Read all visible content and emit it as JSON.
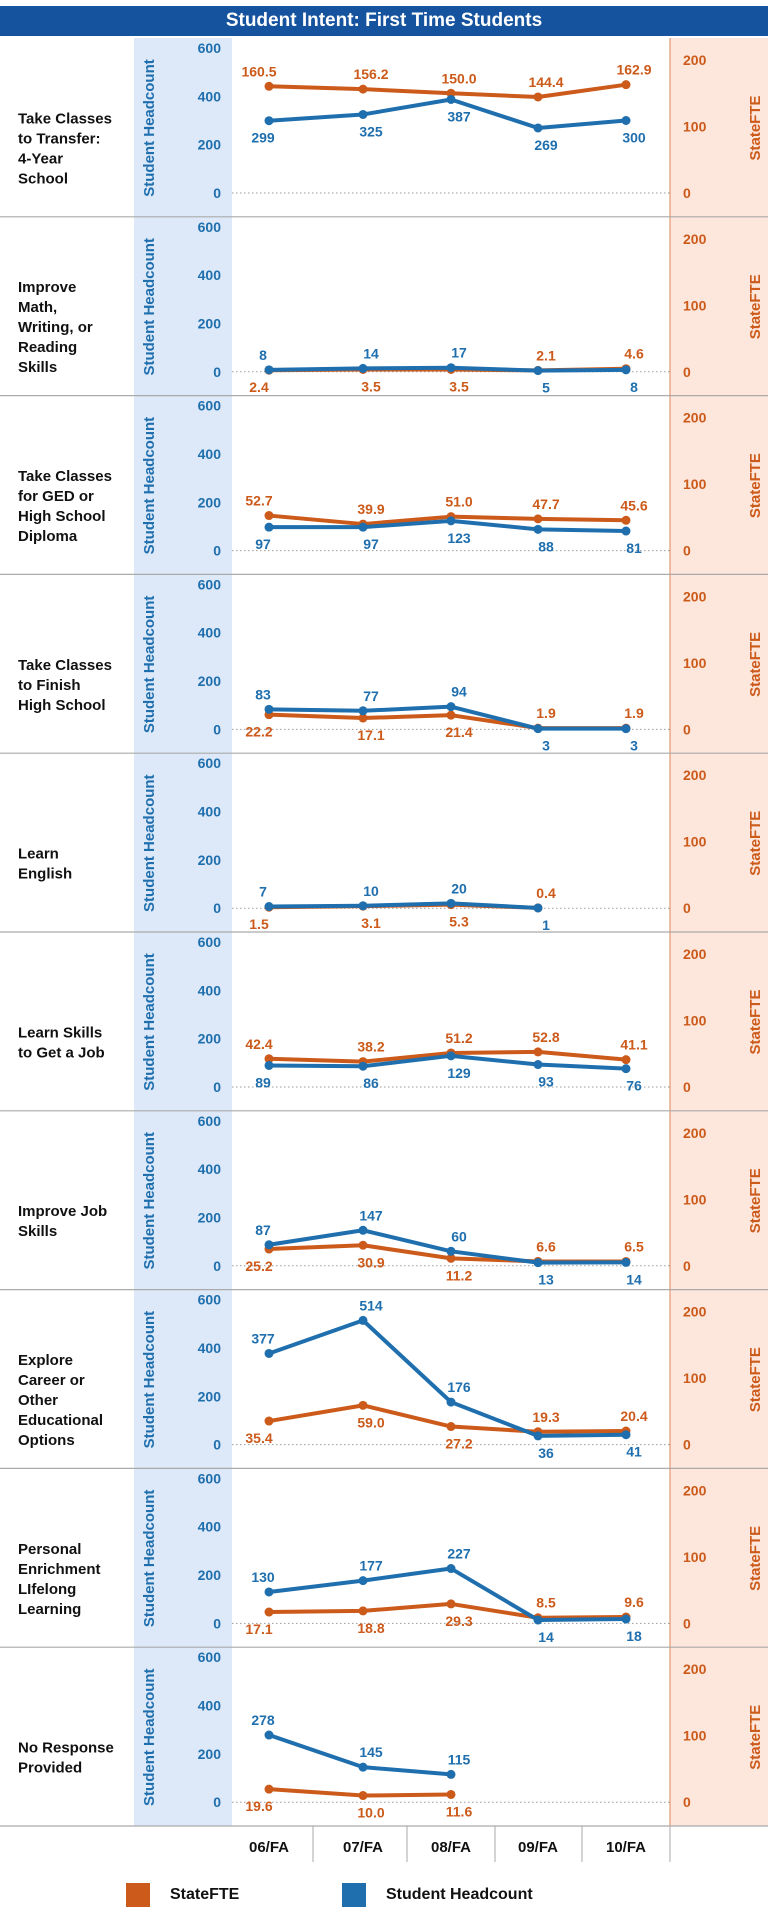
{
  "chart_data": {
    "type": "line",
    "title": "Student Intent: First Time Students",
    "categories": [
      "06/FA",
      "07/FA",
      "08/FA",
      "09/FA",
      "10/FA"
    ],
    "left_axis": {
      "label": "Student Headcount",
      "ticks": [
        0,
        200,
        400,
        600
      ],
      "ylim": [
        0,
        620
      ]
    },
    "right_axis": {
      "label": "StateFTE",
      "ticks": [
        0,
        100,
        200
      ],
      "ylim": [
        0,
        220
      ]
    },
    "grid": false,
    "legend_position": "bottom",
    "colors": {
      "statefte": "#cc5a1a",
      "headcount": "#1f6fae",
      "title_bg": "#15539e",
      "left_band": "#dde9f8",
      "right_band": "#fde6db"
    },
    "panels": [
      {
        "label": "Take Classes to Transfer: 4-Year School",
        "headcount": [
          299,
          325,
          387,
          269,
          300
        ],
        "statefte": [
          160.5,
          156.2,
          150.0,
          144.4,
          162.9
        ],
        "headcount_labels": [
          "299",
          "325",
          "387",
          "269",
          "300"
        ],
        "statefte_labels": [
          "160.5",
          "156.2",
          "150.0",
          "144.4",
          "162.9"
        ]
      },
      {
        "label": "Improve Math, Writing, or Reading Skills",
        "headcount": [
          8,
          14,
          17,
          5,
          8
        ],
        "statefte": [
          2.4,
          3.5,
          3.5,
          2.1,
          4.6
        ],
        "headcount_labels": [
          "8",
          "14",
          "17",
          "5",
          "8"
        ],
        "statefte_labels": [
          "2.4",
          "3.5",
          "3.5",
          "2.1",
          "4.6"
        ]
      },
      {
        "label": "Take Classes for GED or High School Diploma",
        "headcount": [
          97,
          97,
          123,
          88,
          81
        ],
        "statefte": [
          52.7,
          39.9,
          51.0,
          47.7,
          45.6
        ],
        "headcount_labels": [
          "97",
          "97",
          "123",
          "88",
          "81"
        ],
        "statefte_labels": [
          "52.7",
          "39.9",
          "51.0",
          "47.7",
          "45.6"
        ]
      },
      {
        "label": "Take Classes to Finish High School",
        "headcount": [
          83,
          77,
          94,
          3,
          3
        ],
        "statefte": [
          22.2,
          17.1,
          21.4,
          1.9,
          1.9
        ],
        "headcount_labels": [
          "83",
          "77",
          "94",
          "3",
          "3"
        ],
        "statefte_labels": [
          "22.2",
          "17.1",
          "21.4",
          "1.9",
          "1.9"
        ]
      },
      {
        "label": "Learn English",
        "headcount": [
          7,
          10,
          20,
          1,
          null
        ],
        "statefte": [
          1.5,
          3.1,
          5.3,
          0.4,
          null
        ],
        "headcount_labels": [
          "7",
          "10",
          "20",
          "1",
          ""
        ],
        "statefte_labels": [
          "1.5",
          "3.1",
          "5.3",
          "0.4",
          ""
        ]
      },
      {
        "label": "Learn Skills to Get a Job",
        "headcount": [
          89,
          86,
          129,
          93,
          76
        ],
        "statefte": [
          42.4,
          38.2,
          51.2,
          52.8,
          41.1
        ],
        "headcount_labels": [
          "89",
          "86",
          "129",
          "93",
          "76"
        ],
        "statefte_labels": [
          "42.4",
          "38.2",
          "51.2",
          "52.8",
          "41.1"
        ]
      },
      {
        "label": "Improve Job Skills",
        "headcount": [
          87,
          147,
          60,
          13,
          14
        ],
        "statefte": [
          25.2,
          30.9,
          11.2,
          6.6,
          6.5
        ],
        "headcount_labels": [
          "87",
          "147",
          "60",
          "13",
          "14"
        ],
        "statefte_labels": [
          "25.2",
          "30.9",
          "11.2",
          "6.6",
          "6.5"
        ]
      },
      {
        "label": "Explore Career or Other Educational Options",
        "headcount": [
          377,
          514,
          176,
          36,
          41
        ],
        "statefte": [
          35.4,
          59.0,
          27.2,
          19.3,
          20.4
        ],
        "headcount_labels": [
          "377",
          "514",
          "176",
          "36",
          "41"
        ],
        "statefte_labels": [
          "35.4",
          "59.0",
          "27.2",
          "19.3",
          "20.4"
        ]
      },
      {
        "label": "Personal Enrichment LIfelong Learning",
        "headcount": [
          130,
          177,
          227,
          14,
          18
        ],
        "statefte": [
          17.1,
          18.8,
          29.3,
          8.5,
          9.6
        ],
        "headcount_labels": [
          "130",
          "177",
          "227",
          "14",
          "18"
        ],
        "statefte_labels": [
          "17.1",
          "18.8",
          "29.3",
          "8.5",
          "9.6"
        ]
      },
      {
        "label": "No Response Provided",
        "headcount": [
          278,
          145,
          115,
          null,
          null
        ],
        "statefte": [
          19.6,
          10.0,
          11.6,
          null,
          null
        ],
        "headcount_labels": [
          "278",
          "145",
          "115",
          "",
          ""
        ],
        "statefte_labels": [
          "19.6",
          "10.0",
          "11.6",
          "",
          ""
        ]
      }
    ],
    "series": [
      {
        "name": "StateFTE",
        "key": "statefte"
      },
      {
        "name": "Student Headcount",
        "key": "headcount"
      }
    ]
  }
}
